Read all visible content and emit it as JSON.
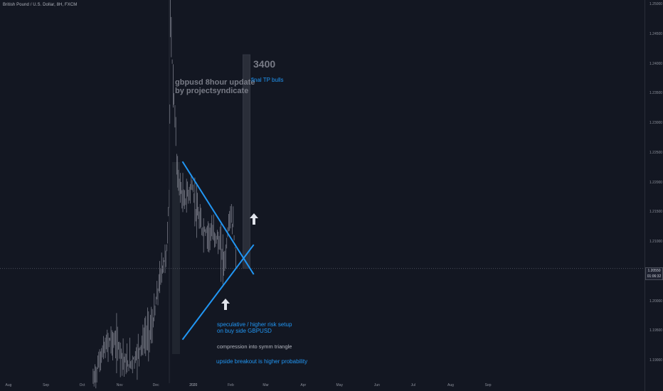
{
  "symbol_label": "British Pound / U.S. Dollar, 8H, FXCM",
  "price_axis": {
    "ticks": [
      "1.25000",
      "1.24500",
      "1.24000",
      "1.23500",
      "1.23000",
      "1.22500",
      "1.22000",
      "1.21500",
      "1.21000",
      "1.20500",
      "1.20000",
      "1.19500",
      "1.19000"
    ],
    "current_price": "1.20550",
    "countdown": "01:06:32"
  },
  "time_axis": {
    "ticks": [
      "Aug",
      "Sep",
      "Oct",
      "Nov",
      "Dec",
      "2020",
      "Feb",
      "Mar",
      "Apr",
      "May",
      "Jun",
      "Jul",
      "Aug",
      "Sep"
    ]
  },
  "annotations": {
    "title_line1": "gbpusd 8hour update",
    "title_line2": "by projectsyndicate",
    "target_value": "3400",
    "final_tp": "final TP bulls",
    "speculative_line1": "speculative / higher risk setup",
    "speculative_line2": "on buy side GBPUSD",
    "compression": "compression into symm triangle",
    "breakout": "upside breakout is higher probability"
  },
  "colors": {
    "background": "#131722",
    "trendline": "#2196f3",
    "candles": "#787b86",
    "target_box": "#2a2e39"
  },
  "chart_data": {
    "type": "line",
    "title": "",
    "xlabel": "",
    "ylabel": "",
    "ylim": [
      1.1875,
      1.25
    ],
    "x": [
      "2019-10-10",
      "2019-10-17",
      "2019-10-24",
      "2019-10-31",
      "2019-11-07",
      "2019-11-14",
      "2019-11-21",
      "2019-11-28",
      "2019-12-05",
      "2019-12-10",
      "2019-12-12",
      "2019-12-13",
      "2019-12-16",
      "2019-12-19",
      "2019-12-24",
      "2019-12-31",
      "2020-01-03",
      "2020-01-08",
      "2020-01-14",
      "2020-01-20",
      "2020-01-27",
      "2020-01-31",
      "2020-02-03",
      "2020-02-06"
    ],
    "series": [
      {
        "values": [
          1.1865,
          1.191,
          1.1935,
          1.1925,
          1.189,
          1.1905,
          1.1935,
          1.1955,
          1.2045,
          1.2085,
          1.218,
          1.2465,
          1.234,
          1.221,
          1.2165,
          1.2195,
          1.2155,
          1.212,
          1.2115,
          1.211,
          1.2065,
          1.2145,
          1.2125,
          1.2055
        ]
      }
    ],
    "lines": [
      {
        "name": "descending trendline",
        "x": [
          "2019-12-23",
          "2020-02-20"
        ],
        "y": [
          1.2235,
          1.2045
        ]
      },
      {
        "name": "ascending trendline",
        "x": [
          "2019-12-23",
          "2020-02-20"
        ],
        "y": [
          1.1935,
          1.2095
        ]
      }
    ],
    "target_zone": {
      "x": [
        "2020-02-11",
        "2020-02-17"
      ],
      "y": [
        1.2055,
        1.2415
      ]
    },
    "current_price": 1.2055,
    "grid": false,
    "legend": "none"
  }
}
